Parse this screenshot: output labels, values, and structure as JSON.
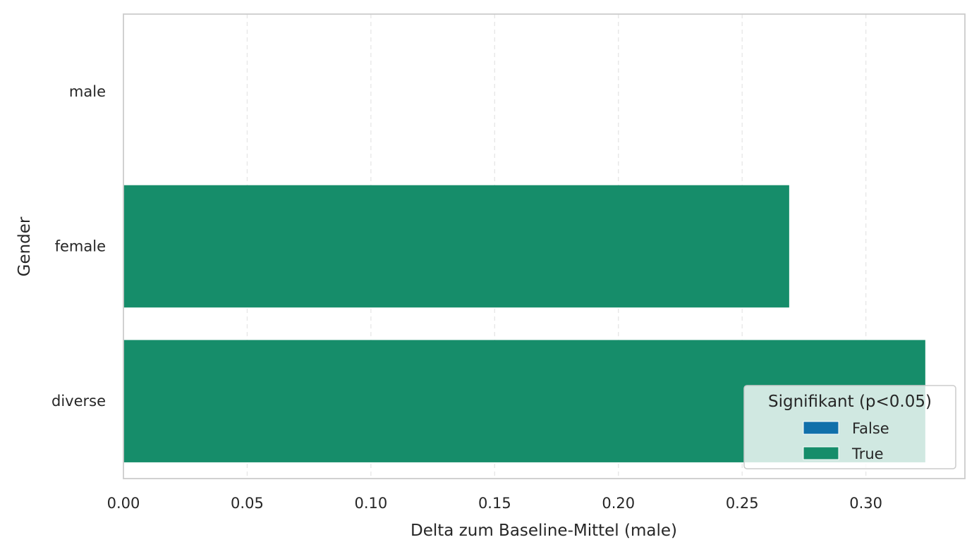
{
  "chart_data": {
    "type": "bar",
    "orientation": "horizontal",
    "categories": [
      "male",
      "female",
      "diverse"
    ],
    "values": [
      0.0,
      0.269,
      0.324
    ],
    "significant": [
      false,
      true,
      true
    ],
    "xlabel": "Delta zum Baseline-Mittel (male)",
    "ylabel": "Gender",
    "xlim": [
      0.0,
      0.34
    ],
    "xticks": [
      "0.00",
      "0.05",
      "0.10",
      "0.15",
      "0.20",
      "0.25",
      "0.30"
    ],
    "xtick_values": [
      0.0,
      0.05,
      0.1,
      0.15,
      0.2,
      0.25,
      0.3
    ],
    "grid": "x-dashed",
    "legend": {
      "title": "Signifikant (p<0.05)",
      "placement": "lower-right",
      "entries": [
        {
          "label": "False",
          "color": "#1170aa"
        },
        {
          "label": "True",
          "color": "#168d6a"
        }
      ]
    }
  }
}
